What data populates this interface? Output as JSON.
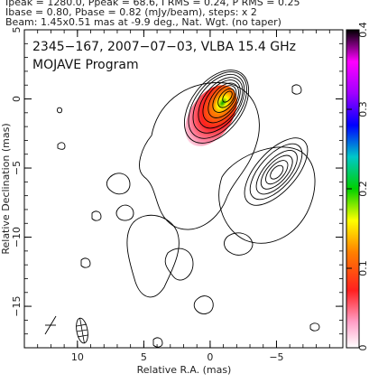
{
  "header": {
    "line1": "Ipeak = 1280.0, Ppeak = 68.6, I RMS = 0.24, P RMS = 0.25",
    "line2": "Ibase = 0.80, Pbase = 0.82 (mJy/beam), steps: x 2",
    "line3": "Beam: 1.45x0.51 mas at -9.9 deg., Nat. Wgt. (no taper)"
  },
  "plot_text": {
    "source_line": "2345−167, 2007−07−03, VLBA 15.4 GHz",
    "program_line": "MOJAVE Program"
  },
  "chart_data": {
    "type": "contour",
    "title": "",
    "xlabel": "Relative R.A. (mas)",
    "ylabel": "Relative Declination (mas)",
    "xlim": [
      14,
      -10
    ],
    "ylim": [
      -18,
      5
    ],
    "x_ticks": [
      10,
      5,
      0,
      -5
    ],
    "x_tick_labels": [
      "10",
      "5",
      "0",
      "−5"
    ],
    "y_ticks": [
      5,
      0,
      -5,
      -10,
      -15
    ],
    "y_tick_labels": [
      "5",
      "0",
      "−5",
      "−10",
      "−15"
    ],
    "colorbar": {
      "label_ticks": [
        0,
        0.1,
        0.2,
        0.3,
        0.4
      ],
      "tick_labels": [
        "0",
        "0.1",
        "0.2",
        "0.3",
        "0.4"
      ],
      "range": [
        0,
        0.4
      ],
      "colors": [
        "#ffffff",
        "#ffa0c8",
        "#ff2020",
        "#ff8000",
        "#ffff00",
        "#00d000",
        "#00c8c8",
        "#0000ff",
        "#a000ff",
        "#ff00ff",
        "#000000"
      ]
    },
    "core": {
      "x": 0.3,
      "y": 0.2
    },
    "contour_levels_mJy": [
      0.8,
      1.6,
      3.2,
      6.4,
      12.8,
      25.6,
      51.2,
      102.4,
      204.8,
      409.6,
      819.2
    ],
    "beam": {
      "major_mas": 1.45,
      "minor_mas": 0.51,
      "pa_deg": -9.9,
      "center": [
        8.8,
        -17
      ]
    }
  }
}
